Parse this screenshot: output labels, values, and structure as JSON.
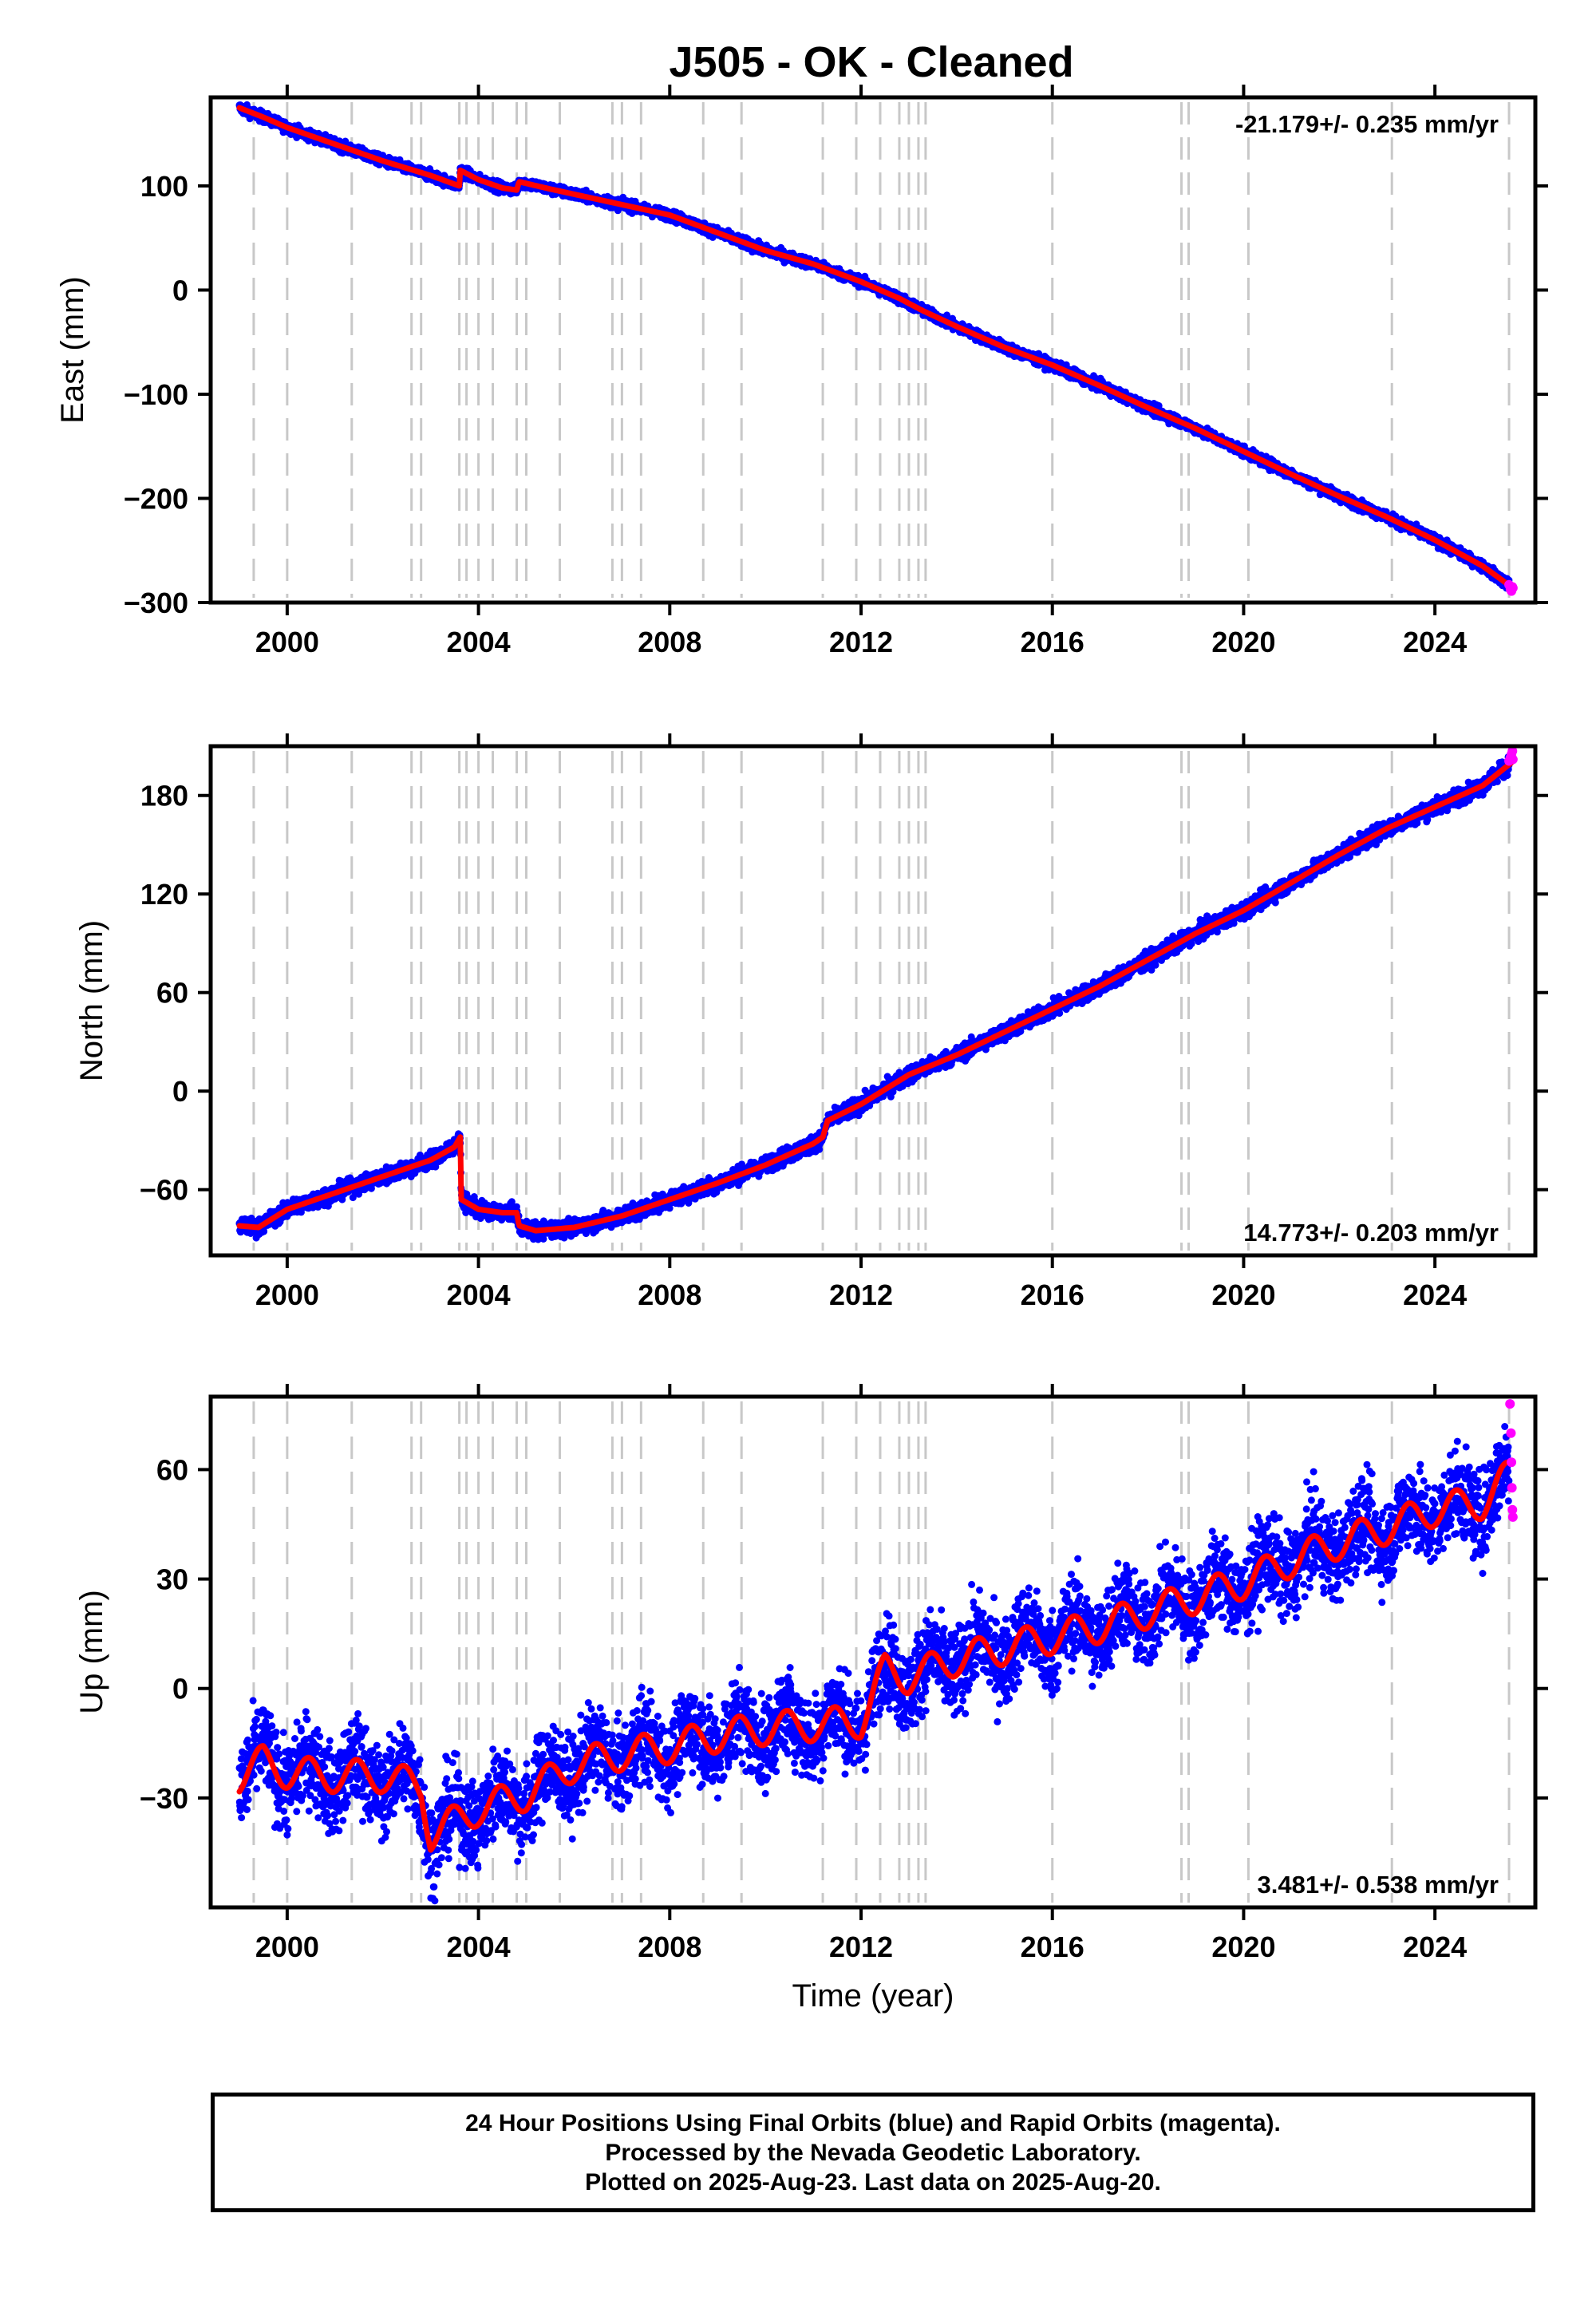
{
  "chart_data": {
    "title": "J505  - OK - Cleaned",
    "type": "scatter",
    "xlim": [
      1998.4,
      2026.1
    ],
    "xticks": [
      2000,
      2004,
      2008,
      2012,
      2016,
      2020,
      2024
    ],
    "xlabel": "Time (year)",
    "step_lines": [
      1999.3,
      2000.0,
      2001.35,
      2002.6,
      2002.8,
      2003.6,
      2003.75,
      2004.0,
      2004.3,
      2004.8,
      2005.0,
      2005.7,
      2006.8,
      2007.0,
      2007.4,
      2008.7,
      2009.5,
      2011.2,
      2011.9,
      2012.4,
      2012.8,
      2013.0,
      2013.2,
      2013.35,
      2016.0,
      2018.7,
      2018.85,
      2020.1,
      2023.1,
      2025.55
    ],
    "colors": {
      "final": "#0000ff",
      "rapid": "#ff00ff",
      "model": "#ff0000",
      "grid": "#c8c8c8"
    },
    "panels": [
      {
        "name": "east",
        "ylabel": "East (mm)",
        "ylim": [
          -300,
          185
        ],
        "yticks": [
          -300,
          -200,
          -100,
          0,
          100
        ],
        "rate_text": "-21.179+/- 0.235 mm/yr",
        "rate_pos": "top-right",
        "model": {
          "x": [
            1999.0,
            1999.5,
            2000.0,
            2001.0,
            2002.0,
            2003.0,
            2003.6,
            2003.62,
            2004.0,
            2004.5,
            2004.8,
            2004.85,
            2005.5,
            2006.0,
            2007.0,
            2008.0,
            2009.0,
            2010.0,
            2011.0,
            2012.0,
            2012.8,
            2013.3,
            2014.0,
            2015.0,
            2016.0,
            2017.0,
            2018.0,
            2019.0,
            2020.0,
            2021.0,
            2022.0,
            2023.0,
            2024.0,
            2025.0,
            2025.6
          ],
          "y": [
            175,
            166,
            156,
            140,
            124,
            110,
            100,
            115,
            106,
            98,
            96,
            104,
            97,
            92,
            82,
            72,
            55,
            38,
            25,
            8,
            -8,
            -20,
            -35,
            -55,
            -72,
            -92,
            -113,
            -133,
            -155,
            -177,
            -198,
            -218,
            -240,
            -265,
            -285
          ]
        },
        "noise": 2.5,
        "rapid": {
          "x": [
            2025.55,
            2025.58,
            2025.6,
            2025.62,
            2025.63
          ],
          "y": [
            -283,
            -287,
            -289,
            -285,
            -286
          ]
        }
      },
      {
        "name": "north",
        "ylabel": "North (mm)",
        "ylim": [
          -100,
          210
        ],
        "yticks": [
          -60,
          0,
          60,
          120,
          180
        ],
        "rate_text": "14.773+/- 0.203 mm/yr",
        "rate_pos": "bottom-right",
        "model": {
          "x": [
            1999.0,
            1999.4,
            2000.0,
            2001.0,
            2002.0,
            2003.0,
            2003.5,
            2003.62,
            2003.64,
            2004.0,
            2004.5,
            2004.8,
            2004.85,
            2005.2,
            2006.0,
            2007.0,
            2008.0,
            2009.0,
            2010.0,
            2011.0,
            2011.2,
            2011.3,
            2012.0,
            2013.0,
            2014.0,
            2015.0,
            2016.0,
            2017.0,
            2018.0,
            2019.0,
            2020.0,
            2021.0,
            2022.0,
            2023.0,
            2024.0,
            2025.0,
            2025.6
          ],
          "y": [
            -82,
            -83,
            -72,
            -62,
            -52,
            -42,
            -34,
            -28,
            -66,
            -72,
            -74,
            -74,
            -82,
            -85,
            -83,
            -76,
            -66,
            -56,
            -45,
            -32,
            -28,
            -18,
            -8,
            10,
            22,
            36,
            50,
            64,
            80,
            96,
            110,
            127,
            144,
            160,
            173,
            186,
            200
          ]
        },
        "noise": 2.5,
        "rapid": {
          "x": [
            2025.55,
            2025.58,
            2025.6,
            2025.62,
            2025.63
          ],
          "y": [
            201,
            203,
            205,
            207,
            202
          ]
        }
      },
      {
        "name": "up",
        "ylabel": "Up (mm)",
        "ylim": [
          -60,
          80
        ],
        "yticks": [
          -30,
          0,
          30,
          60
        ],
        "rate_text": "3.481+/- 0.538 mm/yr",
        "rate_pos": "bottom-right",
        "model": {
          "x": [
            1999.0,
            1999.5,
            2000.0,
            2001.0,
            2002.0,
            2002.8,
            2003.0,
            2004.0,
            2005.0,
            2006.0,
            2007.0,
            2008.0,
            2009.0,
            2010.0,
            2011.0,
            2012.0,
            2012.5,
            2013.0,
            2014.0,
            2015.0,
            2016.0,
            2017.0,
            2018.0,
            2019.0,
            2020.0,
            2021.0,
            2022.0,
            2023.0,
            2024.0,
            2025.0,
            2025.6
          ],
          "y": [
            -24,
            -20,
            -23,
            -24,
            -24,
            -27,
            -40,
            -33,
            -29,
            -21,
            -18,
            -16,
            -13,
            -11,
            -10,
            -9,
            5,
            3,
            8,
            11,
            14,
            17,
            21,
            25,
            29,
            35,
            40,
            44,
            49,
            51,
            59
          ]
        },
        "seasonal": 4.5,
        "noise": 6,
        "rapid": {
          "x": [
            2025.57,
            2025.59,
            2025.6,
            2025.61,
            2025.62,
            2025.63
          ],
          "y": [
            78,
            70,
            62,
            55,
            49,
            47
          ]
        }
      }
    ]
  },
  "footer": {
    "line1": "24 Hour Positions Using Final Orbits (blue) and Rapid Orbits (magenta).",
    "line2": "Processed by the Nevada Geodetic Laboratory.",
    "line3": "Plotted on 2025-Aug-23. Last data on 2025-Aug-20."
  }
}
